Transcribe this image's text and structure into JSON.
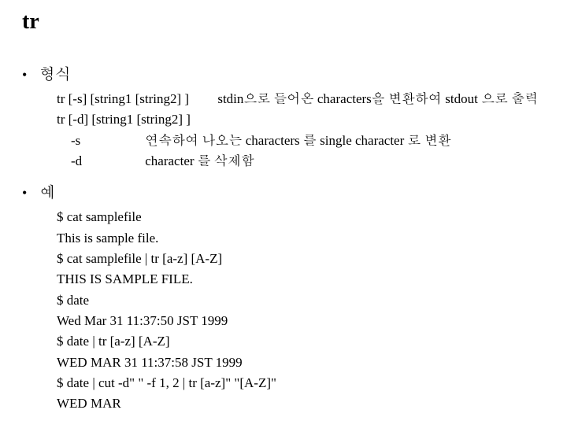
{
  "title": "tr",
  "section1": {
    "label": "형식",
    "syntax1": "tr [-s] [string1  [string2] ]",
    "note1": "stdin으로 들어온 characters을 변환하여 stdout 으로 출력",
    "syntax2": "tr [-d] [string1  [string2] ]",
    "opt_s_key": "-s",
    "opt_s_desc": "연속하여 나오는 characters 를 single character 로 변환",
    "opt_d_key": "-d",
    "opt_d_desc": "character 를 삭제함"
  },
  "section2": {
    "label": "예",
    "lines": [
      "$ cat samplefile",
      "This is sample file.",
      "$ cat samplefile | tr [a-z] [A-Z]",
      "THIS IS SAMPLE FILE.",
      "$ date",
      "Wed Mar 31 11:37:50 JST 1999",
      "$ date | tr [a-z]  [A-Z]",
      "WED MAR 31 11:37:58 JST 1999",
      "$ date | cut -d\" \" -f 1, 2 | tr [a-z]\" \"[A-Z]\"",
      "WED MAR"
    ]
  }
}
